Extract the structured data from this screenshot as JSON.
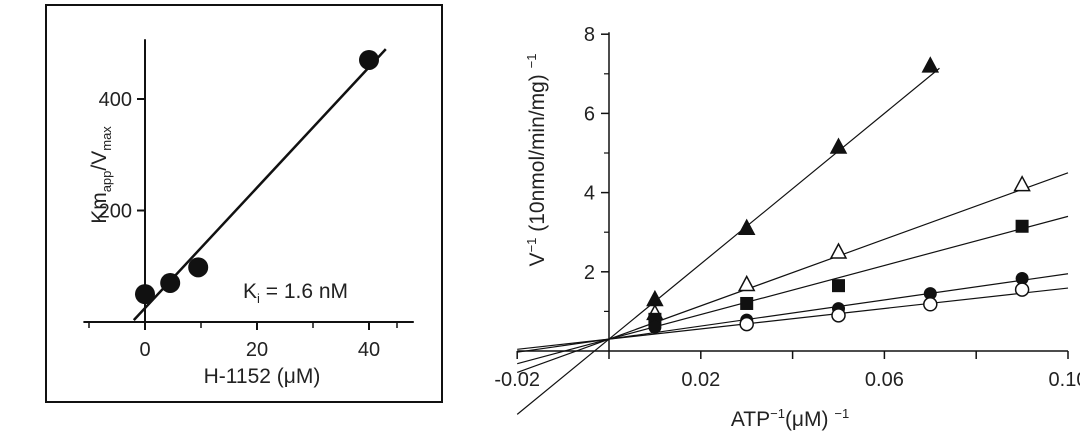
{
  "chart_data": [
    {
      "type": "scatter",
      "panel": "left",
      "xlabel": "H-1152 (μM)",
      "ylabel": {
        "main": "Km",
        "sub1": "app",
        "mid": "/V",
        "sub2": "max"
      },
      "annotation": {
        "main": "K",
        "sub": "i",
        "rest": " = 1.6 nM"
      },
      "xlim": [
        -11,
        48
      ],
      "ylim": [
        0,
        500
      ],
      "xticks": [
        0,
        20,
        40
      ],
      "xtick_labels": [
        "0",
        "20",
        "40"
      ],
      "yticks": [
        200,
        400
      ],
      "ytick_labels": [
        "200",
        "400"
      ],
      "points": [
        {
          "x": 0,
          "y": 50
        },
        {
          "x": 4.5,
          "y": 70
        },
        {
          "x": 9.5,
          "y": 98
        },
        {
          "x": 40,
          "y": 470
        }
      ],
      "fit_line": {
        "x1": -2,
        "x2": 43,
        "slope": 10.8,
        "intercept": 25
      }
    },
    {
      "type": "scatter",
      "panel": "right",
      "xlabel": {
        "main": "ATP",
        "sup": "−1",
        "rest": "(μM) ",
        "sup2": "−1"
      },
      "ylabel": {
        "main": "V",
        "sup": "−1",
        "rest": " (10nmol/min/mg) ",
        "sup2": "−1"
      },
      "xlim": [
        -0.02,
        0.1
      ],
      "ylim": [
        0,
        8
      ],
      "xticks": [
        -0.02,
        0.02,
        0.06,
        0.1
      ],
      "xtick_labels": [
        "-0.02",
        "0.02",
        "0.06",
        "0.10"
      ],
      "minor_xticks": [
        0.0,
        0.04,
        0.08
      ],
      "yticks": [
        2,
        4,
        6,
        8
      ],
      "ytick_labels": [
        "2",
        "4",
        "6",
        "8"
      ],
      "series": [
        {
          "marker": "triangle-filled",
          "x": [
            0.01,
            0.03,
            0.05,
            0.07
          ],
          "y": [
            1.3,
            3.1,
            5.15,
            7.2
          ],
          "line": {
            "x1": -0.02,
            "x2": 0.072,
            "slope": 95,
            "intercept": 0.3
          }
        },
        {
          "marker": "triangle-open",
          "x": [
            0.01,
            0.03,
            0.05,
            0.09
          ],
          "y": [
            0.95,
            1.68,
            2.5,
            4.2
          ],
          "line": {
            "x1": -0.02,
            "x2": 0.1,
            "slope": 42,
            "intercept": 0.3
          }
        },
        {
          "marker": "square-filled",
          "x": [
            0.01,
            0.03,
            0.05,
            0.09
          ],
          "y": [
            0.8,
            1.2,
            1.65,
            3.15
          ],
          "line": {
            "x1": -0.02,
            "x2": 0.1,
            "slope": 31,
            "intercept": 0.3
          }
        },
        {
          "marker": "circle-filled",
          "x": [
            0.01,
            0.03,
            0.05,
            0.07,
            0.09
          ],
          "y": [
            0.6,
            0.78,
            1.07,
            1.45,
            1.83
          ],
          "line": {
            "x1": -0.02,
            "x2": 0.1,
            "slope": 16.5,
            "intercept": 0.3
          }
        },
        {
          "marker": "circle-open",
          "x": [
            0.03,
            0.05,
            0.07,
            0.09
          ],
          "y": [
            0.68,
            0.9,
            1.18,
            1.55
          ],
          "line": {
            "x1": -0.02,
            "x2": 0.1,
            "slope": 12.9,
            "intercept": 0.3
          }
        }
      ]
    }
  ]
}
